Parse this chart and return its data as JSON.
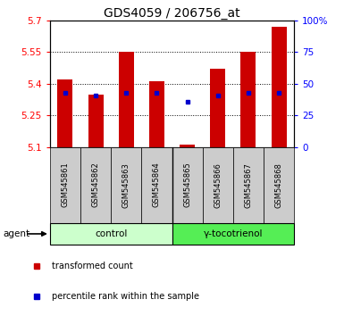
{
  "title": "GDS4059 / 206756_at",
  "samples": [
    "GSM545861",
    "GSM545862",
    "GSM545863",
    "GSM545864",
    "GSM545865",
    "GSM545866",
    "GSM545867",
    "GSM545868"
  ],
  "red_values": [
    5.42,
    5.35,
    5.55,
    5.41,
    5.11,
    5.47,
    5.55,
    5.67
  ],
  "blue_values": [
    5.355,
    5.345,
    5.355,
    5.355,
    5.315,
    5.345,
    5.355,
    5.355
  ],
  "ymin": 5.1,
  "ymax": 5.7,
  "yticks": [
    5.1,
    5.25,
    5.4,
    5.55,
    5.7
  ],
  "right_yticks": [
    0,
    25,
    50,
    75,
    100
  ],
  "right_ytick_labels": [
    "0",
    "25",
    "50",
    "75",
    "100%"
  ],
  "bar_bottom": 5.1,
  "bar_color": "#cc0000",
  "dot_color": "#0000cc",
  "control_label": "control",
  "treatment_label": "γ-tocotrienol",
  "agent_label": "agent",
  "legend_red": "transformed count",
  "legend_blue": "percentile rank within the sample",
  "control_bg": "#ccffcc",
  "treatment_bg": "#55ee55",
  "xticklabel_bg": "#cccccc",
  "title_fontsize": 10,
  "tick_fontsize": 7.5,
  "bar_width": 0.5
}
